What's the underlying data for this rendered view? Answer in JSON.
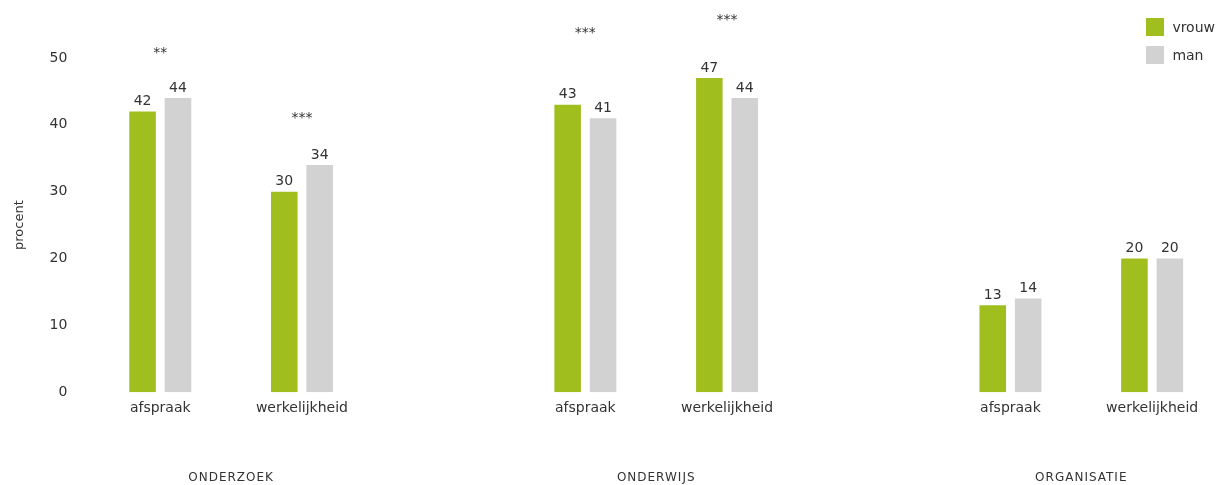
{
  "chart_data": {
    "type": "bar",
    "ylabel": "procent",
    "categories": [
      "afspraak",
      "werkelijkheid",
      null,
      "afspraak",
      "werkelijkheid",
      null,
      "afspraak",
      "werkelijkheid"
    ],
    "series": [
      {
        "name": "vrouw",
        "color": "#a0bf1e",
        "values": [
          42,
          30,
          null,
          43,
          47,
          null,
          13,
          20
        ]
      },
      {
        "name": "man",
        "color": "#d3d2d3",
        "values": [
          44,
          34,
          null,
          41,
          44,
          null,
          14,
          20
        ]
      }
    ],
    "ylim": [
      0,
      50
    ],
    "yticks": [
      0,
      10,
      20,
      30,
      40,
      50
    ],
    "grid": false,
    "data_labels": true,
    "legend": "top right",
    "annotations": [
      "**",
      "***",
      "***",
      "***",
      "ONDERZOEK",
      "ONDERWIJS",
      "ORGANISATIE"
    ]
  }
}
